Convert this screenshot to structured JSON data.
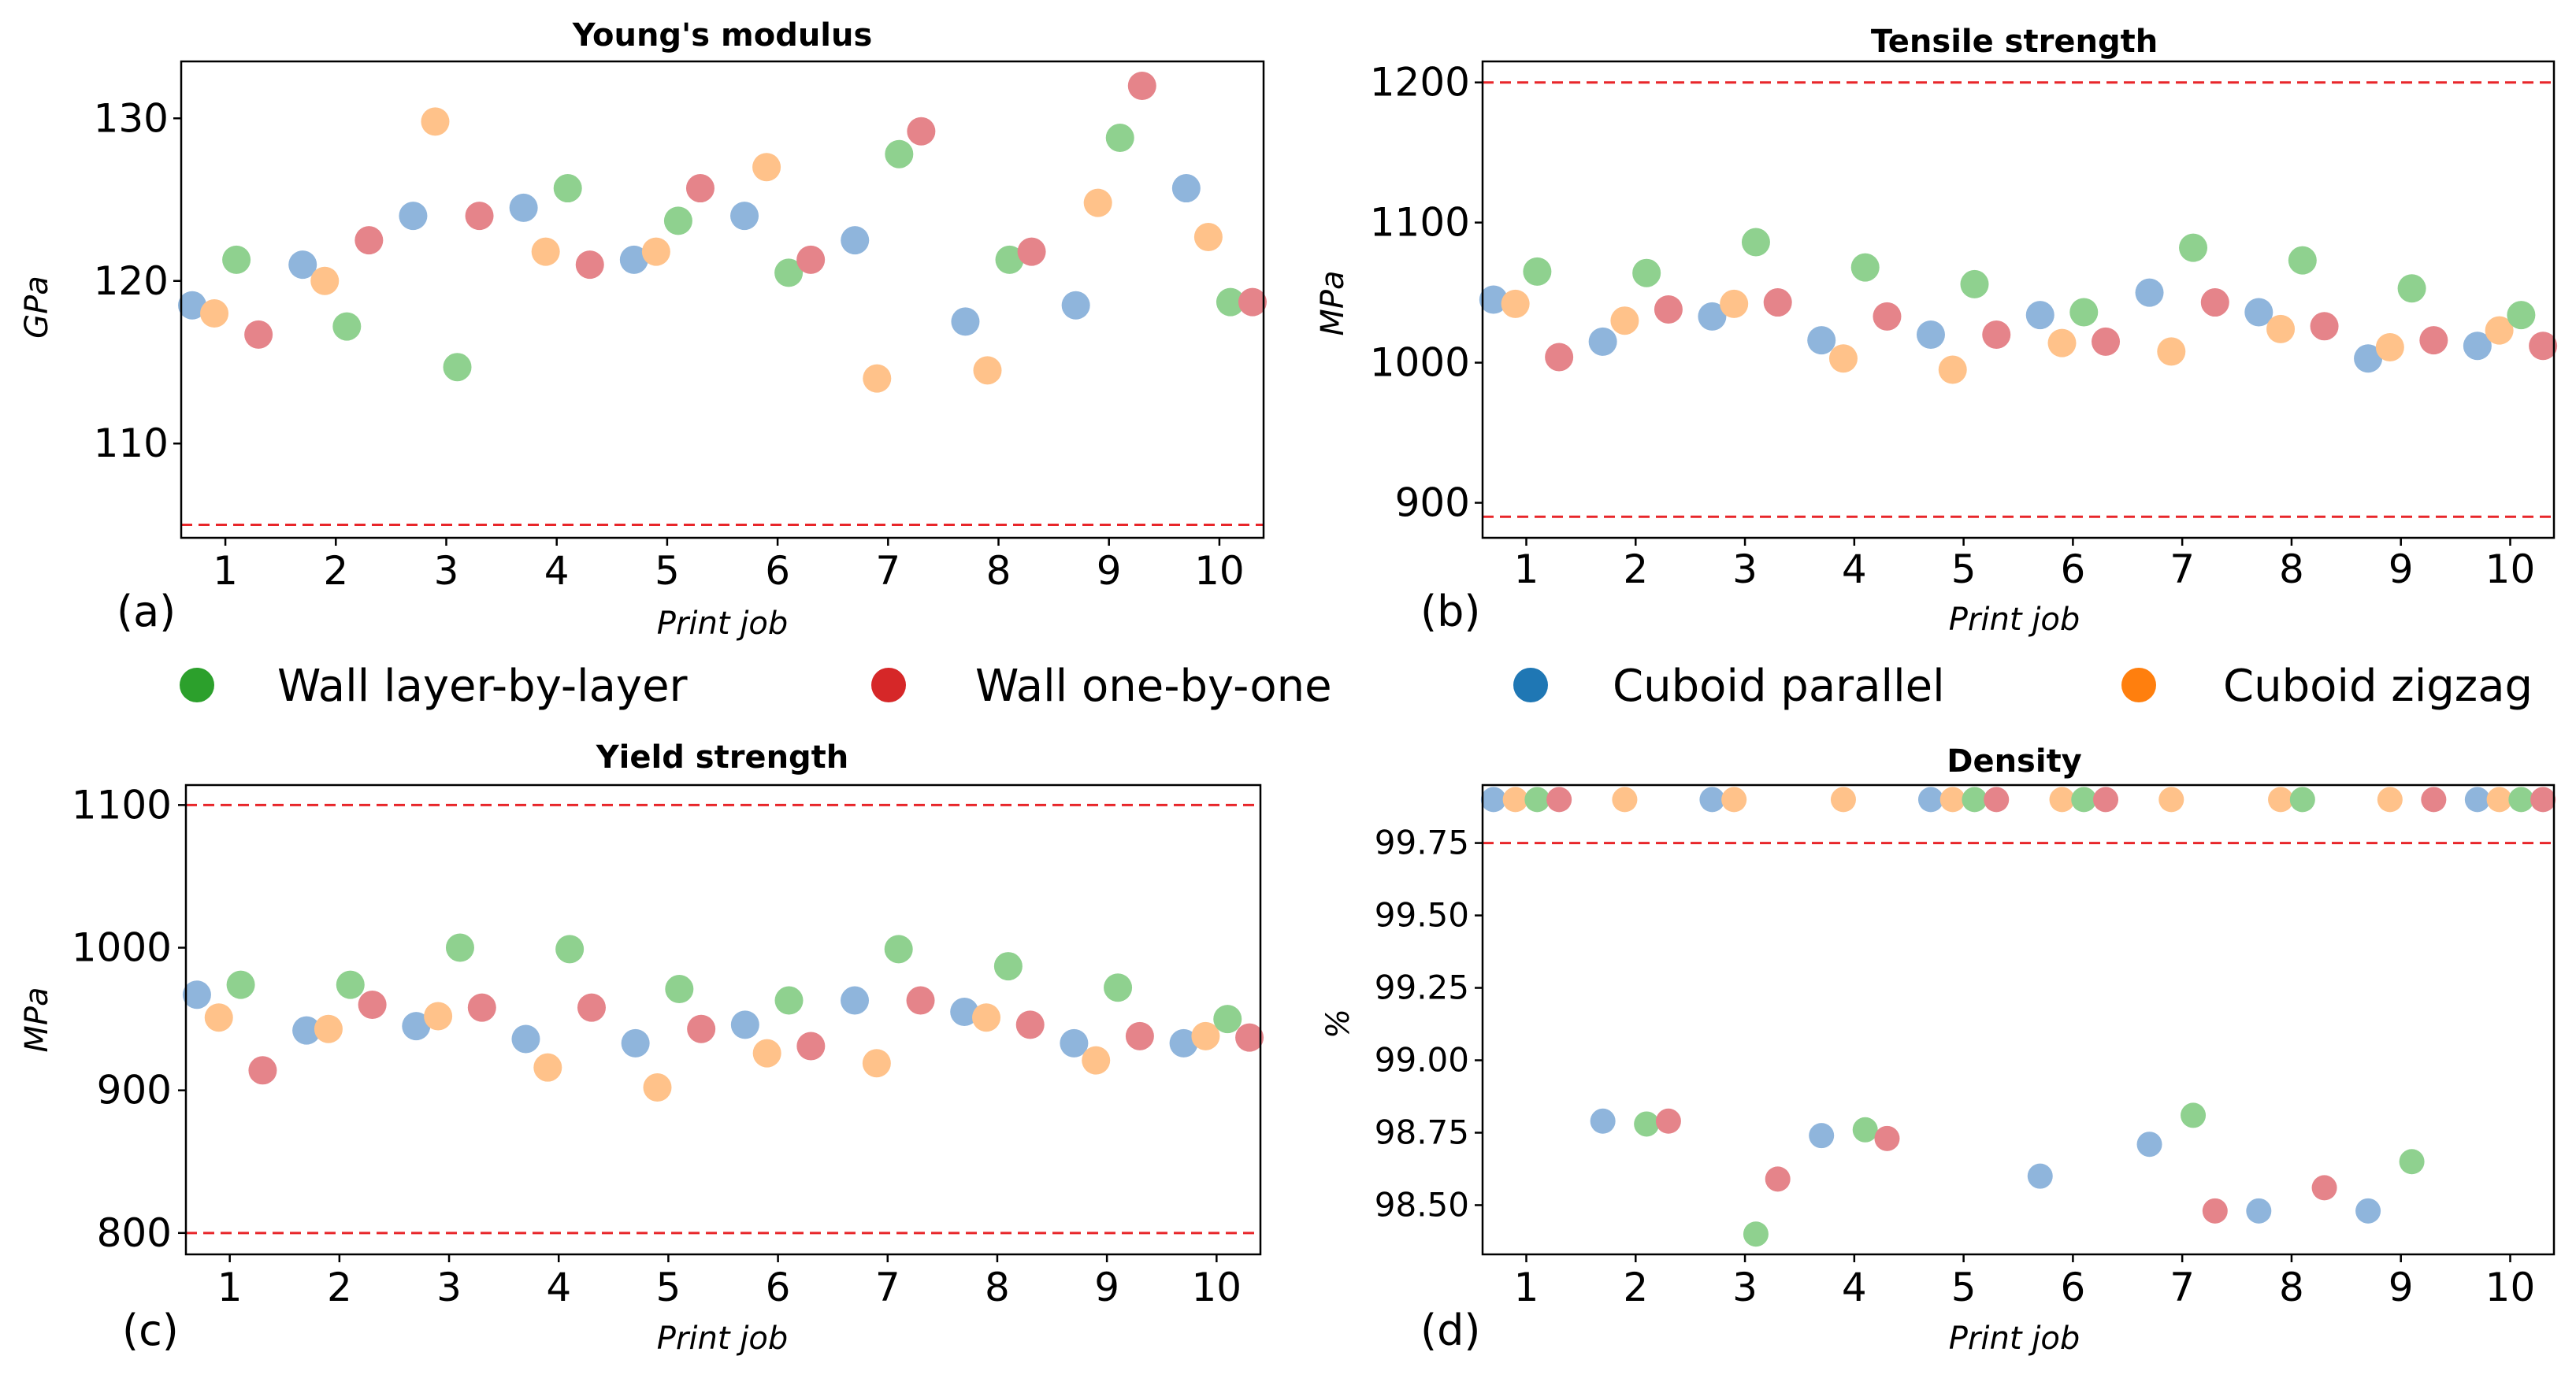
{
  "legend": [
    {
      "label": "Wall layer-by-layer",
      "color": "#2ca02c"
    },
    {
      "label": "Wall one-by-one",
      "color": "#d62728"
    },
    {
      "label": "Cuboid parallel",
      "color": "#1f77b4"
    },
    {
      "label": "Cuboid zigzag",
      "color": "#ff7f0e"
    }
  ],
  "point_colors": {
    "Wall layer-by-layer": "#8fd18f",
    "Wall one-by-one": "#e5848a",
    "Cuboid parallel": "#8fb5dc",
    "Cuboid zigzag": "#ffc28a"
  },
  "limit_color": "#e8262a",
  "chart_data": [
    {
      "panel": "(a)",
      "type": "scatter",
      "title": "Young's modulus",
      "xlabel": "Print job",
      "ylabel": "GPa",
      "xlim": [
        0.6,
        10.4
      ],
      "ylim": [
        104.2,
        133.5
      ],
      "xticks": [
        "1",
        "2",
        "3",
        "4",
        "5",
        "6",
        "7",
        "8",
        "9",
        "10"
      ],
      "yticks": [
        110,
        120,
        130
      ],
      "ytick_labels": [
        "110",
        "120",
        "130"
      ],
      "limit_lines": [
        105
      ],
      "series": [
        {
          "name": "Cuboid parallel",
          "x": [
            0.7,
            1.7,
            2.7,
            3.7,
            4.7,
            5.7,
            6.7,
            7.7,
            8.7,
            9.7
          ],
          "y": [
            118.5,
            121.0,
            124.0,
            124.5,
            121.3,
            124.0,
            122.5,
            117.5,
            118.5,
            125.7
          ]
        },
        {
          "name": "Cuboid zigzag",
          "x": [
            0.9,
            1.9,
            2.9,
            3.9,
            4.9,
            5.9,
            6.9,
            7.9,
            8.9,
            9.9
          ],
          "y": [
            118.0,
            120.0,
            129.8,
            121.8,
            121.8,
            127.0,
            114.0,
            114.5,
            124.8,
            122.7
          ]
        },
        {
          "name": "Wall layer-by-layer",
          "x": [
            1.1,
            2.1,
            3.1,
            4.1,
            5.1,
            6.1,
            7.1,
            8.1,
            9.1,
            10.1
          ],
          "y": [
            121.3,
            117.2,
            114.7,
            125.7,
            123.7,
            120.5,
            127.8,
            121.3,
            128.8,
            118.7
          ]
        },
        {
          "name": "Wall one-by-one",
          "x": [
            1.3,
            2.3,
            3.3,
            4.3,
            5.3,
            6.3,
            7.3,
            8.3,
            9.3,
            10.3
          ],
          "y": [
            116.7,
            122.5,
            124.0,
            121.0,
            125.7,
            121.3,
            129.2,
            121.8,
            132.0,
            118.7
          ]
        }
      ]
    },
    {
      "panel": "(b)",
      "type": "scatter",
      "title": "Tensile strength",
      "xlabel": "Print job",
      "ylabel": "MPa",
      "xlim": [
        0.6,
        10.4
      ],
      "ylim": [
        875,
        1215
      ],
      "xticks": [
        "1",
        "2",
        "3",
        "4",
        "5",
        "6",
        "7",
        "8",
        "9",
        "10"
      ],
      "yticks": [
        900,
        1000,
        1100,
        1200
      ],
      "ytick_labels": [
        "900",
        "1000",
        "1100",
        "1200"
      ],
      "limit_lines": [
        890,
        1200
      ],
      "series": [
        {
          "name": "Cuboid parallel",
          "x": [
            0.7,
            1.7,
            2.7,
            3.7,
            4.7,
            5.7,
            6.7,
            7.7,
            8.7,
            9.7
          ],
          "y": [
            1045,
            1015,
            1033,
            1016,
            1020,
            1034,
            1050,
            1036,
            1003,
            1012
          ]
        },
        {
          "name": "Cuboid zigzag",
          "x": [
            0.9,
            1.9,
            2.9,
            3.9,
            4.9,
            5.9,
            6.9,
            7.9,
            8.9,
            9.9
          ],
          "y": [
            1042,
            1030,
            1042,
            1003,
            995,
            1014,
            1008,
            1024,
            1011,
            1023
          ]
        },
        {
          "name": "Wall layer-by-layer",
          "x": [
            1.1,
            2.1,
            3.1,
            4.1,
            5.1,
            6.1,
            7.1,
            8.1,
            9.1,
            10.1
          ],
          "y": [
            1065,
            1064,
            1086,
            1068,
            1056,
            1036,
            1082,
            1073,
            1053,
            1034
          ]
        },
        {
          "name": "Wall one-by-one",
          "x": [
            1.3,
            2.3,
            3.3,
            4.3,
            5.3,
            6.3,
            7.3,
            8.3,
            9.3,
            10.3
          ],
          "y": [
            1004,
            1038,
            1043,
            1033,
            1020,
            1015,
            1043,
            1026,
            1016,
            1012
          ]
        }
      ]
    },
    {
      "panel": "(c)",
      "type": "scatter",
      "title": "Yield strength",
      "xlabel": "Print job",
      "ylabel": "MPa",
      "xlim": [
        0.6,
        10.4
      ],
      "ylim": [
        785,
        1114
      ],
      "xticks": [
        "1",
        "2",
        "3",
        "4",
        "5",
        "6",
        "7",
        "8",
        "9",
        "10"
      ],
      "yticks": [
        800,
        900,
        1000,
        1100
      ],
      "ytick_labels": [
        "800",
        "900",
        "1000",
        "1100"
      ],
      "limit_lines": [
        800,
        1100
      ],
      "series": [
        {
          "name": "Cuboid parallel",
          "x": [
            0.7,
            1.7,
            2.7,
            3.7,
            4.7,
            5.7,
            6.7,
            7.7,
            8.7,
            9.7
          ],
          "y": [
            967,
            942,
            945,
            936,
            933,
            946,
            963,
            955,
            933,
            933
          ]
        },
        {
          "name": "Cuboid zigzag",
          "x": [
            0.9,
            1.9,
            2.9,
            3.9,
            4.9,
            5.9,
            6.9,
            7.9,
            8.9,
            9.9
          ],
          "y": [
            951,
            943,
            952,
            916,
            902,
            926,
            919,
            951,
            921,
            938
          ]
        },
        {
          "name": "Wall layer-by-layer",
          "x": [
            1.1,
            2.1,
            3.1,
            4.1,
            5.1,
            6.1,
            7.1,
            8.1,
            9.1,
            10.1
          ],
          "y": [
            974,
            974,
            1000,
            999,
            971,
            963,
            999,
            987,
            972,
            950
          ]
        },
        {
          "name": "Wall one-by-one",
          "x": [
            1.3,
            2.3,
            3.3,
            4.3,
            5.3,
            6.3,
            7.3,
            8.3,
            9.3,
            10.3
          ],
          "y": [
            914,
            960,
            958,
            958,
            943,
            931,
            963,
            946,
            938,
            937
          ]
        }
      ]
    },
    {
      "panel": "(d)",
      "type": "scatter",
      "title": "Density",
      "xlabel": "Print job",
      "ylabel": "%",
      "xlim": [
        0.6,
        10.4
      ],
      "ylim": [
        98.33,
        99.95
      ],
      "xticks": [
        "1",
        "2",
        "3",
        "4",
        "5",
        "6",
        "7",
        "8",
        "9",
        "10"
      ],
      "yticks": [
        98.5,
        98.75,
        99.0,
        99.25,
        99.5,
        99.75
      ],
      "ytick_labels": [
        "98.50",
        "98.75",
        "99.00",
        "99.25",
        "99.50",
        "99.75"
      ],
      "limit_lines": [
        99.75
      ],
      "series": [
        {
          "name": "Cuboid parallel",
          "x": [
            0.7,
            1.7,
            2.7,
            3.7,
            4.7,
            5.7,
            6.7,
            7.7,
            8.7,
            9.7
          ],
          "y": [
            99.9,
            98.79,
            99.9,
            98.74,
            99.9,
            98.6,
            98.71,
            98.48,
            98.48,
            99.9
          ]
        },
        {
          "name": "Cuboid zigzag",
          "x": [
            0.9,
            1.9,
            2.9,
            3.9,
            4.9,
            5.9,
            6.9,
            7.9,
            8.9,
            9.9
          ],
          "y": [
            99.9,
            99.9,
            99.9,
            99.9,
            99.9,
            99.9,
            99.9,
            99.9,
            99.9,
            99.9
          ]
        },
        {
          "name": "Wall layer-by-layer",
          "x": [
            1.1,
            2.1,
            3.1,
            4.1,
            5.1,
            6.1,
            7.1,
            8.1,
            9.1,
            10.1
          ],
          "y": [
            99.9,
            98.78,
            98.4,
            98.76,
            99.9,
            99.9,
            98.81,
            99.9,
            98.65,
            99.9
          ]
        },
        {
          "name": "Wall one-by-one",
          "x": [
            1.3,
            2.3,
            3.3,
            4.3,
            5.3,
            6.3,
            7.3,
            8.3,
            9.3,
            10.3
          ],
          "y": [
            99.9,
            98.79,
            98.59,
            98.73,
            99.9,
            99.9,
            98.48,
            98.56,
            99.9,
            99.9
          ]
        }
      ]
    }
  ]
}
